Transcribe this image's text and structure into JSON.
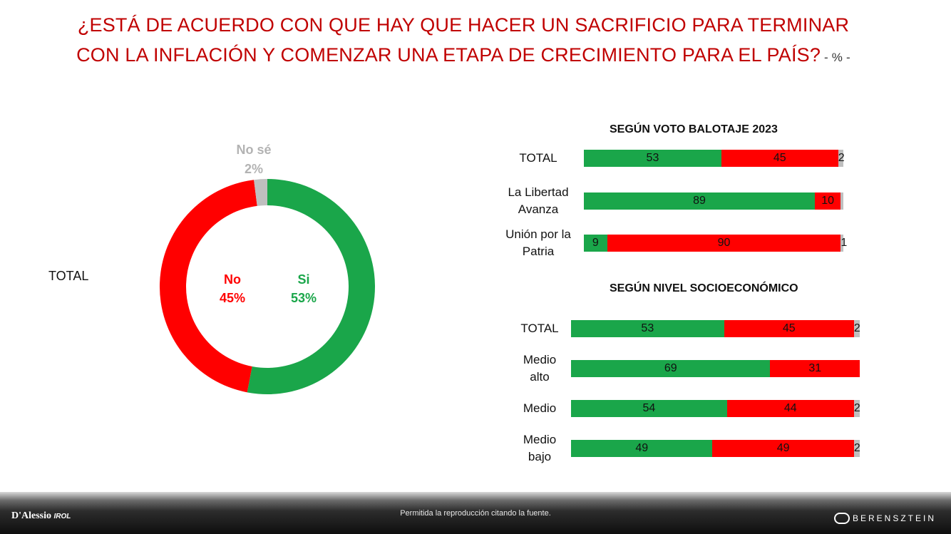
{
  "title": {
    "line1": "¿ESTÁ DE ACUERDO CON QUE HAY QUE HACER UN SACRIFICIO PARA TERMINAR",
    "line2": "CON LA INFLACIÓN Y COMENZAR UNA ETAPA DE CRECIMIENTO PARA EL PAÍS?",
    "unit": " - % -"
  },
  "colors": {
    "si": "#1aa64a",
    "no": "#ff0000",
    "no_se": "#bfbfbf",
    "title": "#c00000"
  },
  "donut_label": "TOTAL",
  "chart_data": [
    {
      "type": "pie",
      "variant": "donut",
      "slices": [
        {
          "name": "Si",
          "value": 53,
          "label": "53%"
        },
        {
          "name": "No",
          "value": 45,
          "label": "45%"
        },
        {
          "name": "No sé",
          "value": 2,
          "label": "2%"
        }
      ]
    },
    {
      "type": "bar",
      "orientation": "horizontal",
      "stacked": true,
      "title": "SEGÚN VOTO BALOTAJE 2023",
      "categories": [
        "TOTAL",
        "La Libertad Avanza",
        "Unión por la Patria"
      ],
      "category_lines": [
        [
          "TOTAL"
        ],
        [
          "La Libertad",
          "Avanza"
        ],
        [
          "Unión por la",
          "Patria"
        ]
      ],
      "series": [
        {
          "name": "Si",
          "values": [
            53,
            89,
            9
          ]
        },
        {
          "name": "No",
          "values": [
            45,
            10,
            90
          ]
        },
        {
          "name": "No sé",
          "values": [
            2,
            1,
            1
          ]
        }
      ],
      "value_labels": [
        [
          "53",
          "45",
          "2"
        ],
        [
          "89",
          "10",
          ""
        ],
        [
          "9",
          "90",
          "1"
        ]
      ]
    },
    {
      "type": "bar",
      "orientation": "horizontal",
      "stacked": true,
      "title": "SEGÚN NIVEL SOCIOECONÓMICO",
      "categories": [
        "TOTAL",
        "Medio alto",
        "Medio",
        "Medio bajo"
      ],
      "category_lines": [
        [
          "TOTAL"
        ],
        [
          "Medio",
          "alto"
        ],
        [
          "Medio"
        ],
        [
          "Medio",
          "bajo"
        ]
      ],
      "series": [
        {
          "name": "Si",
          "values": [
            53,
            69,
            54,
            49
          ]
        },
        {
          "name": "No",
          "values": [
            45,
            31,
            44,
            49
          ]
        },
        {
          "name": "No sé",
          "values": [
            2,
            0,
            2,
            2
          ]
        }
      ],
      "value_labels": [
        [
          "53",
          "45",
          "2"
        ],
        [
          "69",
          "31",
          ""
        ],
        [
          "54",
          "44",
          "2"
        ],
        [
          "49",
          "49",
          "2"
        ]
      ]
    }
  ],
  "footer": {
    "note": "Permitida la reproducción citando la fuente.",
    "logo_left": "D'Alessio",
    "logo_left_sub": "IROL",
    "logo_right": "BERENSZTEIN"
  }
}
